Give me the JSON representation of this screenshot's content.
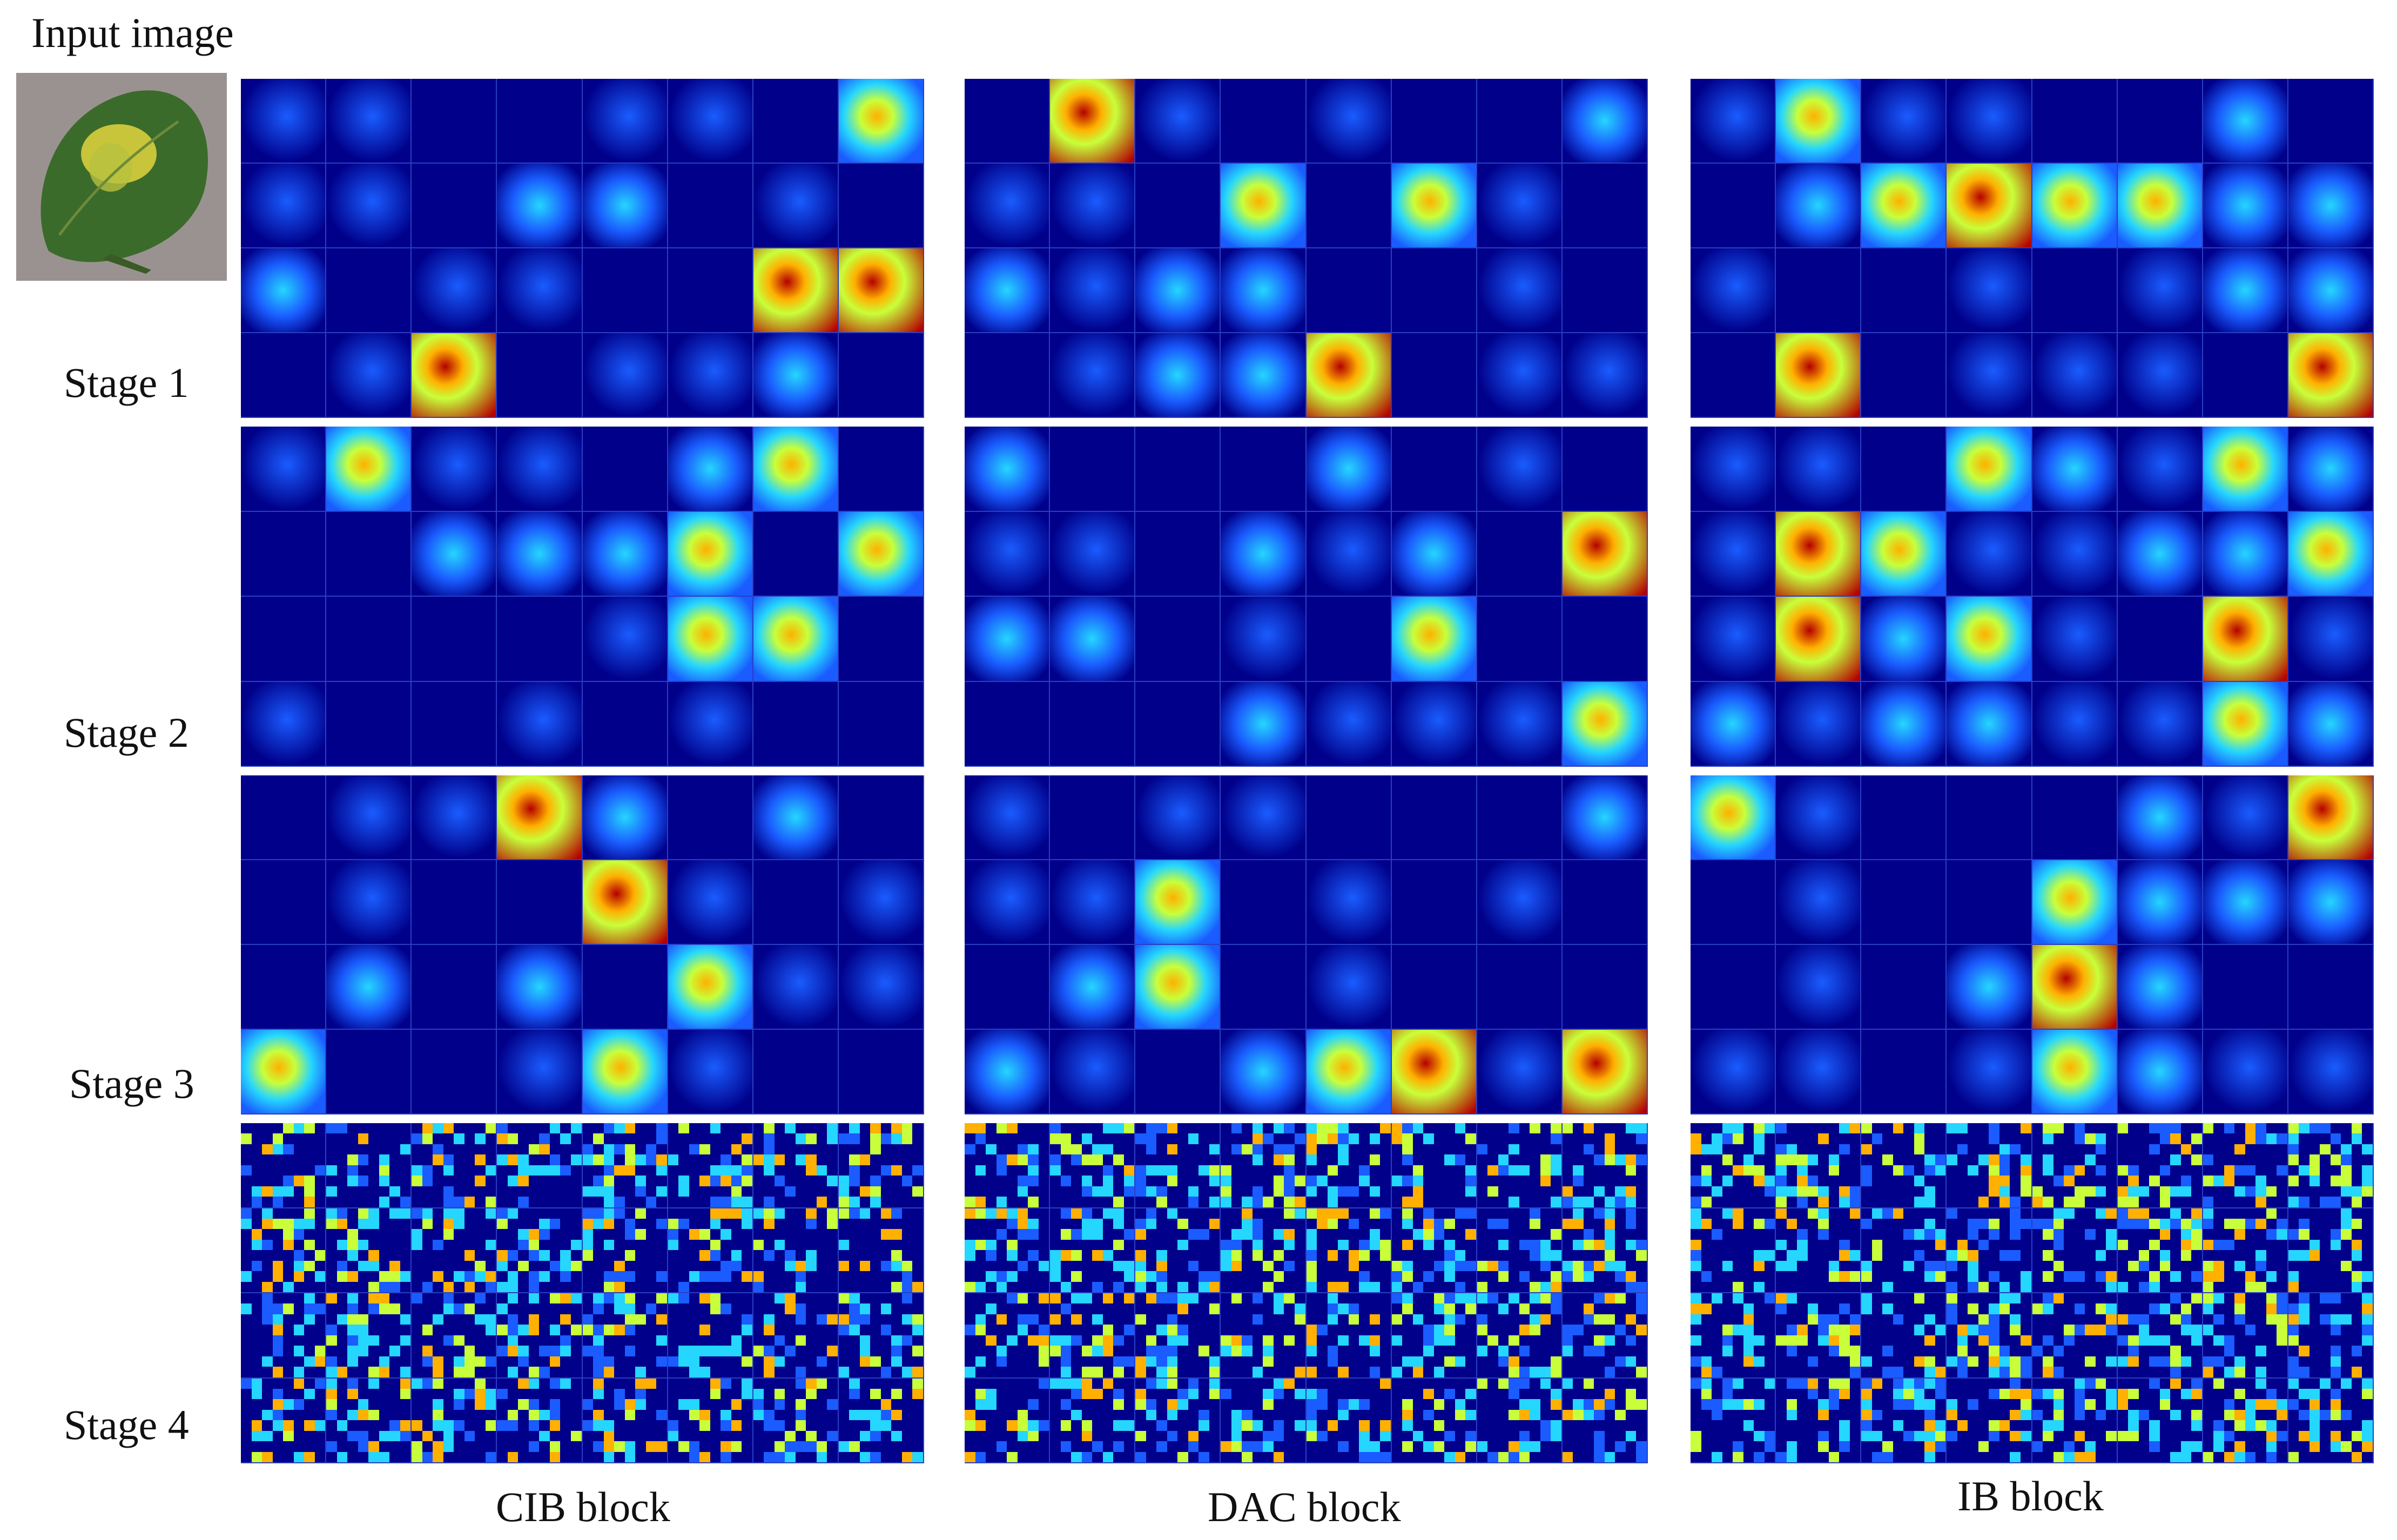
{
  "input_label": "Input image",
  "stage_labels": [
    "Stage 1",
    "Stage 2",
    "Stage 3",
    "Stage 4"
  ],
  "block_labels": [
    "CIB block",
    "DAC block",
    "IB block"
  ],
  "colors": {
    "jet_low": "#00008a",
    "jet_mid_low": "#1a5cff",
    "jet_mid": "#25d6ff",
    "jet_mid_high": "#c8ff3a",
    "jet_high": "#ffb000",
    "jet_max": "#b40000",
    "leaf_green": "#3b6b2a",
    "leaf_spot": "#d8cf3c"
  }
}
